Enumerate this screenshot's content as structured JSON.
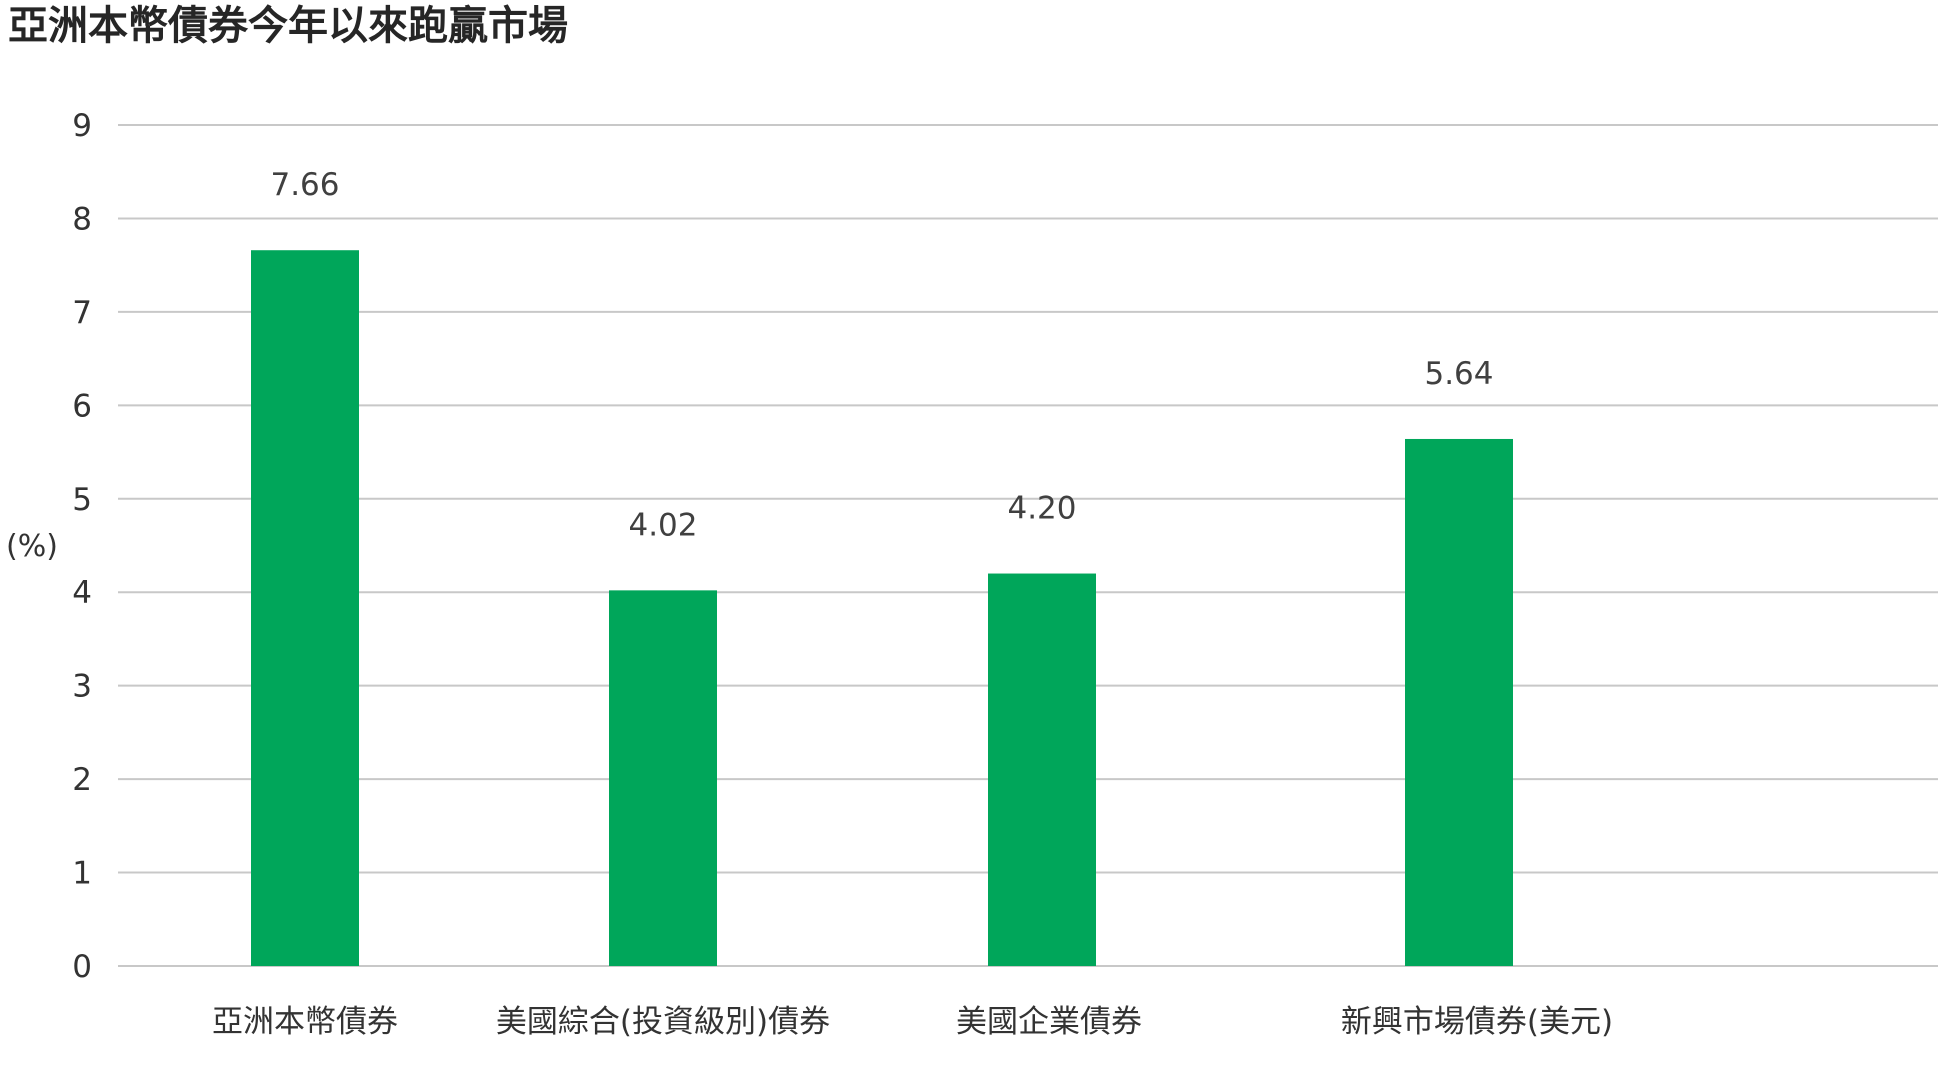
{
  "chart_data": {
    "type": "bar",
    "title": "亞洲本幣債券今年以來跑贏市場",
    "ylabel": "(%)",
    "xlabel": "",
    "ylim": [
      0,
      9
    ],
    "yticks": [
      0,
      1,
      2,
      3,
      4,
      5,
      6,
      7,
      8,
      9
    ],
    "grid": true,
    "categories": [
      "亞洲本幣債券",
      "美國綜合(投資級別)債券",
      "美國企業債券",
      "新興市場債券(美元)"
    ],
    "values": [
      7.66,
      4.02,
      4.2,
      5.64
    ],
    "value_labels": [
      "7.66",
      "4.02",
      "4.20",
      "5.64"
    ],
    "bar_color": "#00A65A",
    "grid_color": "#c8c8c8"
  }
}
